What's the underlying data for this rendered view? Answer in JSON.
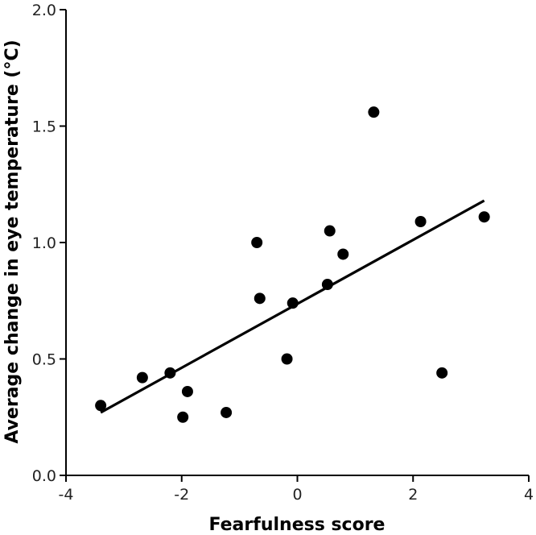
{
  "chart_data": {
    "type": "scatter",
    "title": "",
    "xlabel": "Fearfulness score",
    "ylabel": "Average change in eye temperature (°C)",
    "xlim": [
      -4,
      4
    ],
    "ylim": [
      0.0,
      2.0
    ],
    "x_ticks": [
      -4,
      -2,
      0,
      2,
      4
    ],
    "x_tick_labels": [
      "-4",
      "-2",
      "0",
      "2",
      "4"
    ],
    "y_ticks": [
      0.0,
      0.5,
      1.0,
      1.5,
      2.0
    ],
    "y_tick_labels": [
      "0.0",
      "0.5",
      "1.0",
      "1.5",
      "2.0"
    ],
    "grid": false,
    "legend": "none",
    "series": [
      {
        "x": [
          -3.4,
          -2.68,
          -2.2,
          -1.98,
          -1.9,
          -1.23,
          -0.7,
          -0.65,
          -0.18,
          -0.08,
          0.52,
          0.56,
          0.79,
          1.32,
          2.13,
          2.5,
          3.23
        ],
        "y": [
          0.3,
          0.42,
          0.44,
          0.25,
          0.36,
          0.27,
          1.0,
          0.76,
          0.5,
          0.74,
          0.82,
          1.05,
          0.95,
          1.56,
          1.09,
          0.44,
          1.11
        ]
      }
    ],
    "trendline": {
      "x": [
        -3.4,
        3.23
      ],
      "y": [
        0.27,
        1.18
      ]
    },
    "colors": {
      "points": "#000000",
      "line": "#000000",
      "axes": "#000000"
    }
  }
}
